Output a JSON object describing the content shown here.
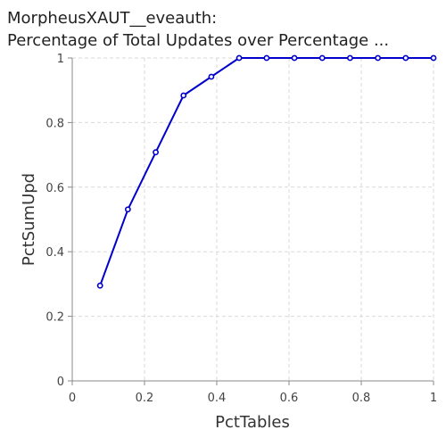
{
  "chart_data": {
    "type": "line",
    "title_lines": [
      "MorpheusXAUT__eveauth:",
      "Percentage of Total Updates over Percentage ..."
    ],
    "xlabel": "PctTables",
    "ylabel": "PctSumUpd",
    "xlim": [
      0,
      1
    ],
    "ylim": [
      0,
      1
    ],
    "xticks": [
      "0",
      "0.2",
      "0.4",
      "0.6",
      "0.8",
      "1"
    ],
    "yticks": [
      "0",
      "0.2",
      "0.4",
      "0.6",
      "0.8",
      "1"
    ],
    "grid": true,
    "legend": "none",
    "series": [
      {
        "color": "#0000cc",
        "x": [
          0.077,
          0.154,
          0.231,
          0.308,
          0.385,
          0.462,
          0.538,
          0.615,
          0.692,
          0.769,
          0.846,
          0.923,
          1.0
        ],
        "y": [
          0.295,
          0.531,
          0.708,
          0.884,
          0.942,
          1.0,
          1.0,
          1.0,
          1.0,
          1.0,
          1.0,
          1.0,
          1.0
        ]
      }
    ]
  }
}
